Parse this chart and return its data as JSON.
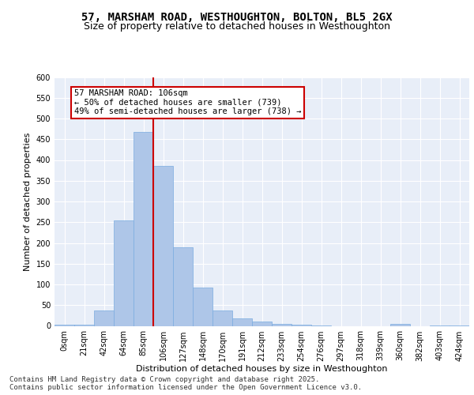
{
  "title": "57, MARSHAM ROAD, WESTHOUGHTON, BOLTON, BL5 2GX",
  "subtitle": "Size of property relative to detached houses in Westhoughton",
  "xlabel": "Distribution of detached houses by size in Westhoughton",
  "ylabel": "Number of detached properties",
  "bar_color": "#aec6e8",
  "bar_edge_color": "#7aace0",
  "vline_color": "#cc0000",
  "vline_x_index": 4.5,
  "annotation_text": "57 MARSHAM ROAD: 106sqm\n← 50% of detached houses are smaller (739)\n49% of semi-detached houses are larger (738) →",
  "annotation_box_color": "white",
  "annotation_box_edge": "#cc0000",
  "categories": [
    "0sqm",
    "21sqm",
    "42sqm",
    "64sqm",
    "85sqm",
    "106sqm",
    "127sqm",
    "148sqm",
    "170sqm",
    "191sqm",
    "212sqm",
    "233sqm",
    "254sqm",
    "276sqm",
    "297sqm",
    "318sqm",
    "339sqm",
    "360sqm",
    "382sqm",
    "403sqm",
    "424sqm"
  ],
  "values": [
    2,
    3,
    38,
    255,
    467,
    385,
    190,
    93,
    38,
    18,
    10,
    5,
    3,
    1,
    0,
    0,
    0,
    4,
    0,
    1,
    1
  ],
  "ylim": [
    0,
    600
  ],
  "yticks": [
    0,
    50,
    100,
    150,
    200,
    250,
    300,
    350,
    400,
    450,
    500,
    550,
    600
  ],
  "background_color": "#e8eef8",
  "footer_text": "Contains HM Land Registry data © Crown copyright and database right 2025.\nContains public sector information licensed under the Open Government Licence v3.0.",
  "title_fontsize": 10,
  "subtitle_fontsize": 9,
  "axis_label_fontsize": 8,
  "tick_fontsize": 7,
  "footer_fontsize": 6.5,
  "annot_fontsize": 7.5
}
